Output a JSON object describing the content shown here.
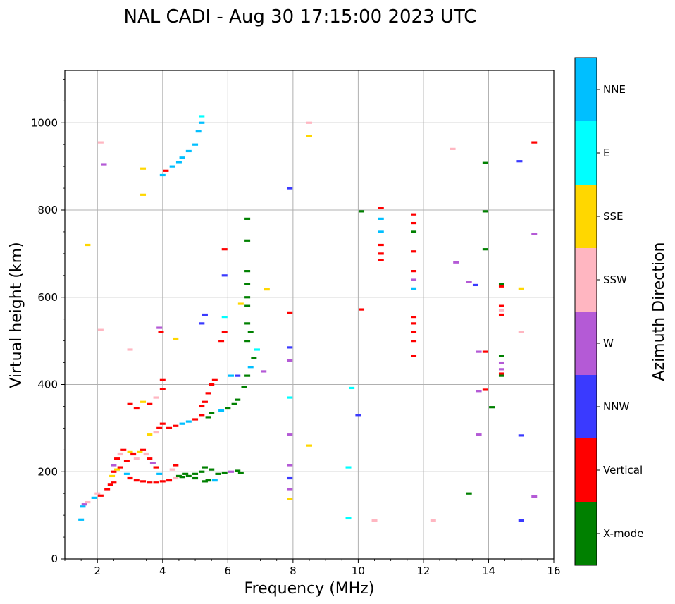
{
  "chart_data": {
    "type": "scatter",
    "title": "NAL CADI - Aug 30 17:15:00 2023 UTC",
    "xlabel": "Frequency (MHz)",
    "ylabel": "Virtual height (km)",
    "xlim": [
      1,
      16
    ],
    "ylim": [
      0,
      1120
    ],
    "xticks": [
      2,
      4,
      6,
      8,
      10,
      12,
      14,
      16
    ],
    "yticks": [
      0,
      200,
      400,
      600,
      800,
      1000
    ],
    "grid": true,
    "colorbar": {
      "title": "Azimuth Direction",
      "categories": [
        {
          "name": "X-mode",
          "color": "#008000"
        },
        {
          "name": "Vertical",
          "color": "#ff0000"
        },
        {
          "name": "NNW",
          "color": "#3a3aff"
        },
        {
          "name": "W",
          "color": "#b45ad6"
        },
        {
          "name": "SSW",
          "color": "#ffb6c1"
        },
        {
          "name": "SSE",
          "color": "#ffd700"
        },
        {
          "name": "E",
          "color": "#00ffff"
        },
        {
          "name": "NNE",
          "color": "#00bfff"
        }
      ]
    },
    "points": [
      [
        1.5,
        90,
        "NNE"
      ],
      [
        1.55,
        120,
        "NNE"
      ],
      [
        1.6,
        125,
        "W"
      ],
      [
        1.7,
        130,
        "SSW"
      ],
      [
        1.9,
        140,
        "NNE"
      ],
      [
        2.0,
        150,
        "SSW"
      ],
      [
        2.1,
        145,
        "Vertical"
      ],
      [
        2.3,
        160,
        "Vertical"
      ],
      [
        2.4,
        170,
        "Vertical"
      ],
      [
        2.5,
        175,
        "Vertical"
      ],
      [
        2.45,
        190,
        "SSE"
      ],
      [
        2.5,
        200,
        "Vertical"
      ],
      [
        2.5,
        215,
        "W"
      ],
      [
        2.6,
        230,
        "Vertical"
      ],
      [
        2.7,
        240,
        "SSW"
      ],
      [
        2.8,
        250,
        "Vertical"
      ],
      [
        2.9,
        225,
        "Vertical"
      ],
      [
        3.0,
        245,
        "SSE"
      ],
      [
        3.1,
        240,
        "Vertical"
      ],
      [
        3.2,
        230,
        "SSW"
      ],
      [
        3.3,
        245,
        "SSE"
      ],
      [
        3.4,
        250,
        "Vertical"
      ],
      [
        3.5,
        240,
        "SSW"
      ],
      [
        3.6,
        230,
        "Vertical"
      ],
      [
        3.7,
        220,
        "W"
      ],
      [
        3.8,
        210,
        "Vertical"
      ],
      [
        2.6,
        205,
        "SSE"
      ],
      [
        2.7,
        210,
        "Vertical"
      ],
      [
        2.9,
        195,
        "NNE"
      ],
      [
        3.0,
        185,
        "Vertical"
      ],
      [
        3.2,
        180,
        "Vertical"
      ],
      [
        3.4,
        178,
        "Vertical"
      ],
      [
        3.6,
        175,
        "Vertical"
      ],
      [
        3.8,
        175,
        "Vertical"
      ],
      [
        4.0,
        178,
        "Vertical"
      ],
      [
        4.2,
        180,
        "Vertical"
      ],
      [
        4.4,
        185,
        "SSW"
      ],
      [
        4.6,
        188,
        "X-mode"
      ],
      [
        4.8,
        190,
        "X-mode"
      ],
      [
        5.0,
        195,
        "X-mode"
      ],
      [
        5.2,
        200,
        "X-mode"
      ],
      [
        5.3,
        210,
        "X-mode"
      ],
      [
        5.5,
        205,
        "X-mode"
      ],
      [
        5.4,
        180,
        "X-mode"
      ],
      [
        5.7,
        195,
        "X-mode"
      ],
      [
        5.9,
        198,
        "X-mode"
      ],
      [
        6.1,
        200,
        "W"
      ],
      [
        6.3,
        202,
        "X-mode"
      ],
      [
        6.4,
        198,
        "X-mode"
      ],
      [
        4.7,
        195,
        "X-mode"
      ],
      [
        5.0,
        185,
        "X-mode"
      ],
      [
        5.3,
        178,
        "X-mode"
      ],
      [
        5.6,
        180,
        "NNE"
      ],
      [
        4.5,
        190,
        "X-mode"
      ],
      [
        3.9,
        195,
        "NNE"
      ],
      [
        4.3,
        205,
        "SSW"
      ],
      [
        4.4,
        215,
        "Vertical"
      ],
      [
        3.6,
        285,
        "SSE"
      ],
      [
        3.8,
        290,
        "SSW"
      ],
      [
        3.9,
        300,
        "Vertical"
      ],
      [
        4.0,
        310,
        "Vertical"
      ],
      [
        4.2,
        300,
        "Vertical"
      ],
      [
        4.4,
        305,
        "Vertical"
      ],
      [
        4.6,
        310,
        "NNE"
      ],
      [
        4.8,
        315,
        "NNE"
      ],
      [
        5.0,
        320,
        "Vertical"
      ],
      [
        5.2,
        330,
        "Vertical"
      ],
      [
        5.4,
        325,
        "X-mode"
      ],
      [
        5.5,
        335,
        "X-mode"
      ],
      [
        5.8,
        340,
        "NNE"
      ],
      [
        6.0,
        345,
        "X-mode"
      ],
      [
        6.2,
        355,
        "X-mode"
      ],
      [
        6.3,
        365,
        "X-mode"
      ],
      [
        6.5,
        395,
        "X-mode"
      ],
      [
        6.6,
        420,
        "X-mode"
      ],
      [
        6.7,
        440,
        "NNE"
      ],
      [
        6.8,
        460,
        "X-mode"
      ],
      [
        6.9,
        480,
        "E"
      ],
      [
        6.6,
        500,
        "X-mode"
      ],
      [
        6.7,
        520,
        "X-mode"
      ],
      [
        6.6,
        540,
        "X-mode"
      ],
      [
        6.6,
        580,
        "X-mode"
      ],
      [
        6.6,
        600,
        "X-mode"
      ],
      [
        6.6,
        630,
        "X-mode"
      ],
      [
        6.6,
        660,
        "X-mode"
      ],
      [
        6.6,
        730,
        "X-mode"
      ],
      [
        6.6,
        780,
        "X-mode"
      ],
      [
        6.1,
        420,
        "NNE"
      ],
      [
        6.3,
        420,
        "NNW"
      ],
      [
        3.0,
        355,
        "Vertical"
      ],
      [
        3.2,
        345,
        "Vertical"
      ],
      [
        3.4,
        360,
        "SSE"
      ],
      [
        3.6,
        355,
        "Vertical"
      ],
      [
        3.8,
        370,
        "SSW"
      ],
      [
        4.0,
        390,
        "Vertical"
      ],
      [
        4.0,
        410,
        "Vertical"
      ],
      [
        5.4,
        380,
        "Vertical"
      ],
      [
        5.5,
        400,
        "Vertical"
      ],
      [
        5.6,
        410,
        "Vertical"
      ],
      [
        5.2,
        350,
        "Vertical"
      ],
      [
        5.3,
        360,
        "Vertical"
      ],
      [
        4.0,
        880,
        "NNE"
      ],
      [
        4.1,
        890,
        "Vertical"
      ],
      [
        4.3,
        900,
        "NNE"
      ],
      [
        4.5,
        910,
        "NNE"
      ],
      [
        4.6,
        920,
        "NNE"
      ],
      [
        4.8,
        935,
        "NNE"
      ],
      [
        5.0,
        950,
        "NNE"
      ],
      [
        5.1,
        980,
        "NNE"
      ],
      [
        5.2,
        1000,
        "NNE"
      ],
      [
        5.2,
        1015,
        "E"
      ],
      [
        3.9,
        530,
        "W"
      ],
      [
        3.95,
        520,
        "Vertical"
      ],
      [
        4.4,
        505,
        "SSE"
      ],
      [
        5.2,
        540,
        "NNW"
      ],
      [
        5.3,
        560,
        "NNW"
      ],
      [
        5.8,
        500,
        "Vertical"
      ],
      [
        5.9,
        520,
        "Vertical"
      ],
      [
        5.9,
        555,
        "E"
      ],
      [
        5.9,
        650,
        "NNW"
      ],
      [
        5.9,
        710,
        "Vertical"
      ],
      [
        6.4,
        585,
        "SSE"
      ],
      [
        7.2,
        618,
        "SSE"
      ],
      [
        7.1,
        430,
        "W"
      ],
      [
        1.7,
        720,
        "SSE"
      ],
      [
        2.1,
        955,
        "SSW"
      ],
      [
        2.2,
        905,
        "W"
      ],
      [
        2.1,
        525,
        "SSW"
      ],
      [
        3.0,
        480,
        "SSW"
      ],
      [
        3.4,
        895,
        "SSE"
      ],
      [
        3.4,
        835,
        "SSE"
      ],
      [
        7.9,
        850,
        "NNW"
      ],
      [
        7.9,
        565,
        "Vertical"
      ],
      [
        7.9,
        485,
        "NNW"
      ],
      [
        7.9,
        455,
        "W"
      ],
      [
        7.9,
        370,
        "E"
      ],
      [
        7.9,
        285,
        "W"
      ],
      [
        7.9,
        215,
        "W"
      ],
      [
        7.9,
        185,
        "NNW"
      ],
      [
        7.9,
        160,
        "W"
      ],
      [
        7.9,
        138,
        "SSE"
      ],
      [
        8.5,
        1000,
        "SSW"
      ],
      [
        8.5,
        970,
        "SSE"
      ],
      [
        8.5,
        260,
        "SSE"
      ],
      [
        9.8,
        392,
        "E"
      ],
      [
        9.7,
        210,
        "E"
      ],
      [
        9.7,
        93,
        "E"
      ],
      [
        10.0,
        330,
        "NNW"
      ],
      [
        10.1,
        572,
        "Vertical"
      ],
      [
        10.1,
        797,
        "X-mode"
      ],
      [
        10.5,
        88,
        "SSW"
      ],
      [
        10.7,
        805,
        "Vertical"
      ],
      [
        10.7,
        780,
        "NNE"
      ],
      [
        10.7,
        750,
        "NNE"
      ],
      [
        10.7,
        720,
        "Vertical"
      ],
      [
        10.7,
        700,
        "Vertical"
      ],
      [
        10.7,
        685,
        "Vertical"
      ],
      [
        11.7,
        790,
        "Vertical"
      ],
      [
        11.7,
        770,
        "Vertical"
      ],
      [
        11.7,
        750,
        "X-mode"
      ],
      [
        11.7,
        705,
        "Vertical"
      ],
      [
        11.7,
        660,
        "Vertical"
      ],
      [
        11.7,
        640,
        "W"
      ],
      [
        11.7,
        620,
        "NNE"
      ],
      [
        11.7,
        555,
        "Vertical"
      ],
      [
        11.7,
        540,
        "Vertical"
      ],
      [
        11.7,
        520,
        "Vertical"
      ],
      [
        11.7,
        500,
        "Vertical"
      ],
      [
        11.7,
        465,
        "Vertical"
      ],
      [
        12.3,
        88,
        "SSW"
      ],
      [
        12.9,
        940,
        "SSW"
      ],
      [
        13.0,
        680,
        "W"
      ],
      [
        13.4,
        635,
        "W"
      ],
      [
        13.4,
        150,
        "X-mode"
      ],
      [
        13.6,
        628,
        "NNW"
      ],
      [
        13.7,
        475,
        "W"
      ],
      [
        13.7,
        385,
        "W"
      ],
      [
        13.7,
        285,
        "W"
      ],
      [
        13.9,
        908,
        "X-mode"
      ],
      [
        13.9,
        797,
        "X-mode"
      ],
      [
        13.9,
        710,
        "X-mode"
      ],
      [
        13.9,
        475,
        "Vertical"
      ],
      [
        13.9,
        388,
        "Vertical"
      ],
      [
        14.1,
        348,
        "X-mode"
      ],
      [
        14.4,
        630,
        "X-mode"
      ],
      [
        14.4,
        625,
        "Vertical"
      ],
      [
        14.4,
        580,
        "Vertical"
      ],
      [
        14.4,
        570,
        "SSW"
      ],
      [
        14.4,
        560,
        "Vertical"
      ],
      [
        14.4,
        465,
        "X-mode"
      ],
      [
        14.4,
        450,
        "W"
      ],
      [
        14.4,
        435,
        "W"
      ],
      [
        14.4,
        425,
        "Vertical"
      ],
      [
        14.4,
        420,
        "X-mode"
      ],
      [
        14.95,
        912,
        "NNW"
      ],
      [
        15.0,
        620,
        "SSE"
      ],
      [
        15.0,
        520,
        "SSW"
      ],
      [
        15.0,
        283,
        "NNW"
      ],
      [
        15.0,
        88,
        "NNW"
      ],
      [
        15.4,
        955,
        "Vertical"
      ],
      [
        15.4,
        745,
        "W"
      ],
      [
        15.4,
        143,
        "W"
      ]
    ]
  }
}
